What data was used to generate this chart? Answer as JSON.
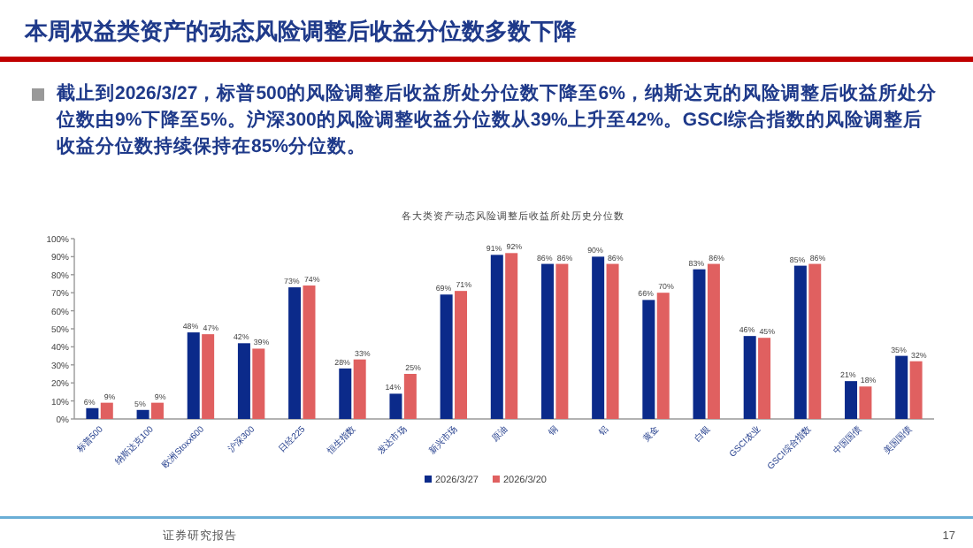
{
  "chart_data": {
    "type": "bar",
    "title": "本周权益类资产的动态风险调整后收益分位数多数下降",
    "subtitle": "截止到2026/3/27，标普500的风险调整后收益所处分位数下降至6%，纳斯达克的风险调整后收益所处分位数由9%下降至5%。沪深300的风险调整收益分位数从39%上升至42%。GSCI综合指数的风险调整后收益分位数持续保持在85%分位数。",
    "annotations": [
      "各大类资产动态风险调整后收益所处历史分位数",
      "证券研究报告",
      "17"
    ],
    "categories": [
      "标普500",
      "纳斯达克100",
      "欧洲Stoxx600",
      "沪深300",
      "日经225",
      "恒生指数",
      "发达市场",
      "新兴市场",
      "原油",
      "铜",
      "铝",
      "黄金",
      "白银",
      "GSCI农业",
      "GSCI综合指数",
      "中国国债",
      "美国国债"
    ],
    "series": [
      {
        "name": "2026/3/27",
        "color": "#0b2a8a",
        "values": [
          6,
          5,
          48,
          42,
          73,
          28,
          14,
          69,
          91,
          86,
          90,
          66,
          83,
          46,
          85,
          21,
          35
        ],
        "value_labels": [
          "6%",
          "5%",
          "48%",
          "42%",
          "73%",
          "28%",
          "14%",
          "69%",
          "91%",
          "86%",
          "90%",
          "66%",
          "83%",
          "46%",
          "85%",
          "21%",
          "35%"
        ]
      },
      {
        "name": "2026/3/20",
        "color": "#e06060",
        "values": [
          9,
          9,
          47,
          39,
          74,
          33,
          25,
          71,
          92,
          86,
          86,
          70,
          86,
          45,
          86,
          18,
          32
        ],
        "value_labels": [
          "9%",
          "9%",
          "47%",
          "39%",
          "74%",
          "33%",
          "25%",
          "71%",
          "92%",
          "86%",
          "86%",
          "70%",
          "86%",
          "45%",
          "86%",
          "18%",
          "32%"
        ]
      }
    ],
    "ylim": [
      0,
      100
    ],
    "yticks": [
      {
        "value": 0,
        "label": "0%"
      },
      {
        "value": 10,
        "label": "10%"
      },
      {
        "value": 20,
        "label": "20%"
      },
      {
        "value": 30,
        "label": "30%"
      },
      {
        "value": 40,
        "label": "40%"
      },
      {
        "value": 50,
        "label": "50%"
      },
      {
        "value": 60,
        "label": "60%"
      },
      {
        "value": 70,
        "label": "70%"
      },
      {
        "value": 80,
        "label": "80%"
      },
      {
        "value": 90,
        "label": "90%"
      },
      {
        "value": 100,
        "label": "100%"
      }
    ],
    "legend": "bottom",
    "grid": false
  }
}
